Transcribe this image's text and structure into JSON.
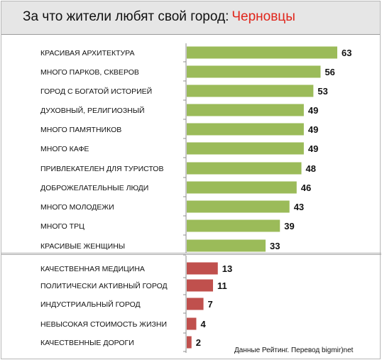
{
  "header": {
    "title": "За что жители любят свой город:",
    "city": "Черновцы"
  },
  "source": "Данные Рейтинг. Перевод bigmir)net",
  "colors": {
    "positive": "#9bbb59",
    "negative": "#c0504d",
    "axis": "#8c8c8c"
  },
  "chart_data": {
    "type": "bar",
    "orientation": "horizontal",
    "xlim": [
      0,
      65
    ],
    "grid": false,
    "groups": [
      {
        "color": "#9bbb59",
        "categories": [
          "КРАСИВАЯ АРХИТЕКТУРА",
          "МНОГО ПАРКОВ, СКВЕРОВ",
          "ГОРОД С БОГАТОЙ ИСТОРИЕЙ",
          "ДУХОВНЫЙ, РЕЛИГИОЗНЫЙ",
          "МНОГО ПАМЯТНИКОВ",
          "МНОГО КАФЕ",
          "ПРИВЛЕКАТЕЛЕН ДЛЯ ТУРИСТОВ",
          "ДОБРОЖЕЛАТЕЛЬНЫЕ ЛЮДИ",
          "МНОГО МОЛОДЕЖИ",
          "МНОГО ТРЦ",
          "КРАСИВЫЕ ЖЕНЩИНЫ"
        ],
        "values": [
          63,
          56,
          53,
          49,
          49,
          49,
          48,
          46,
          43,
          39,
          33
        ]
      },
      {
        "color": "#c0504d",
        "categories": [
          "КАЧЕСТВЕННАЯ МЕДИЦИНА",
          "ПОЛИТИЧЕСКИ АКТИВНЫЙ ГОРОД",
          "ИНДУСТРИАЛЬНЫЙ ГОРОД",
          "НЕВЫСОКАЯ СТОИМОСТЬ ЖИЗНИ",
          "КАЧЕСТВЕННЫЕ ДОРОГИ"
        ],
        "values": [
          13,
          11,
          7,
          4,
          2
        ]
      }
    ]
  }
}
